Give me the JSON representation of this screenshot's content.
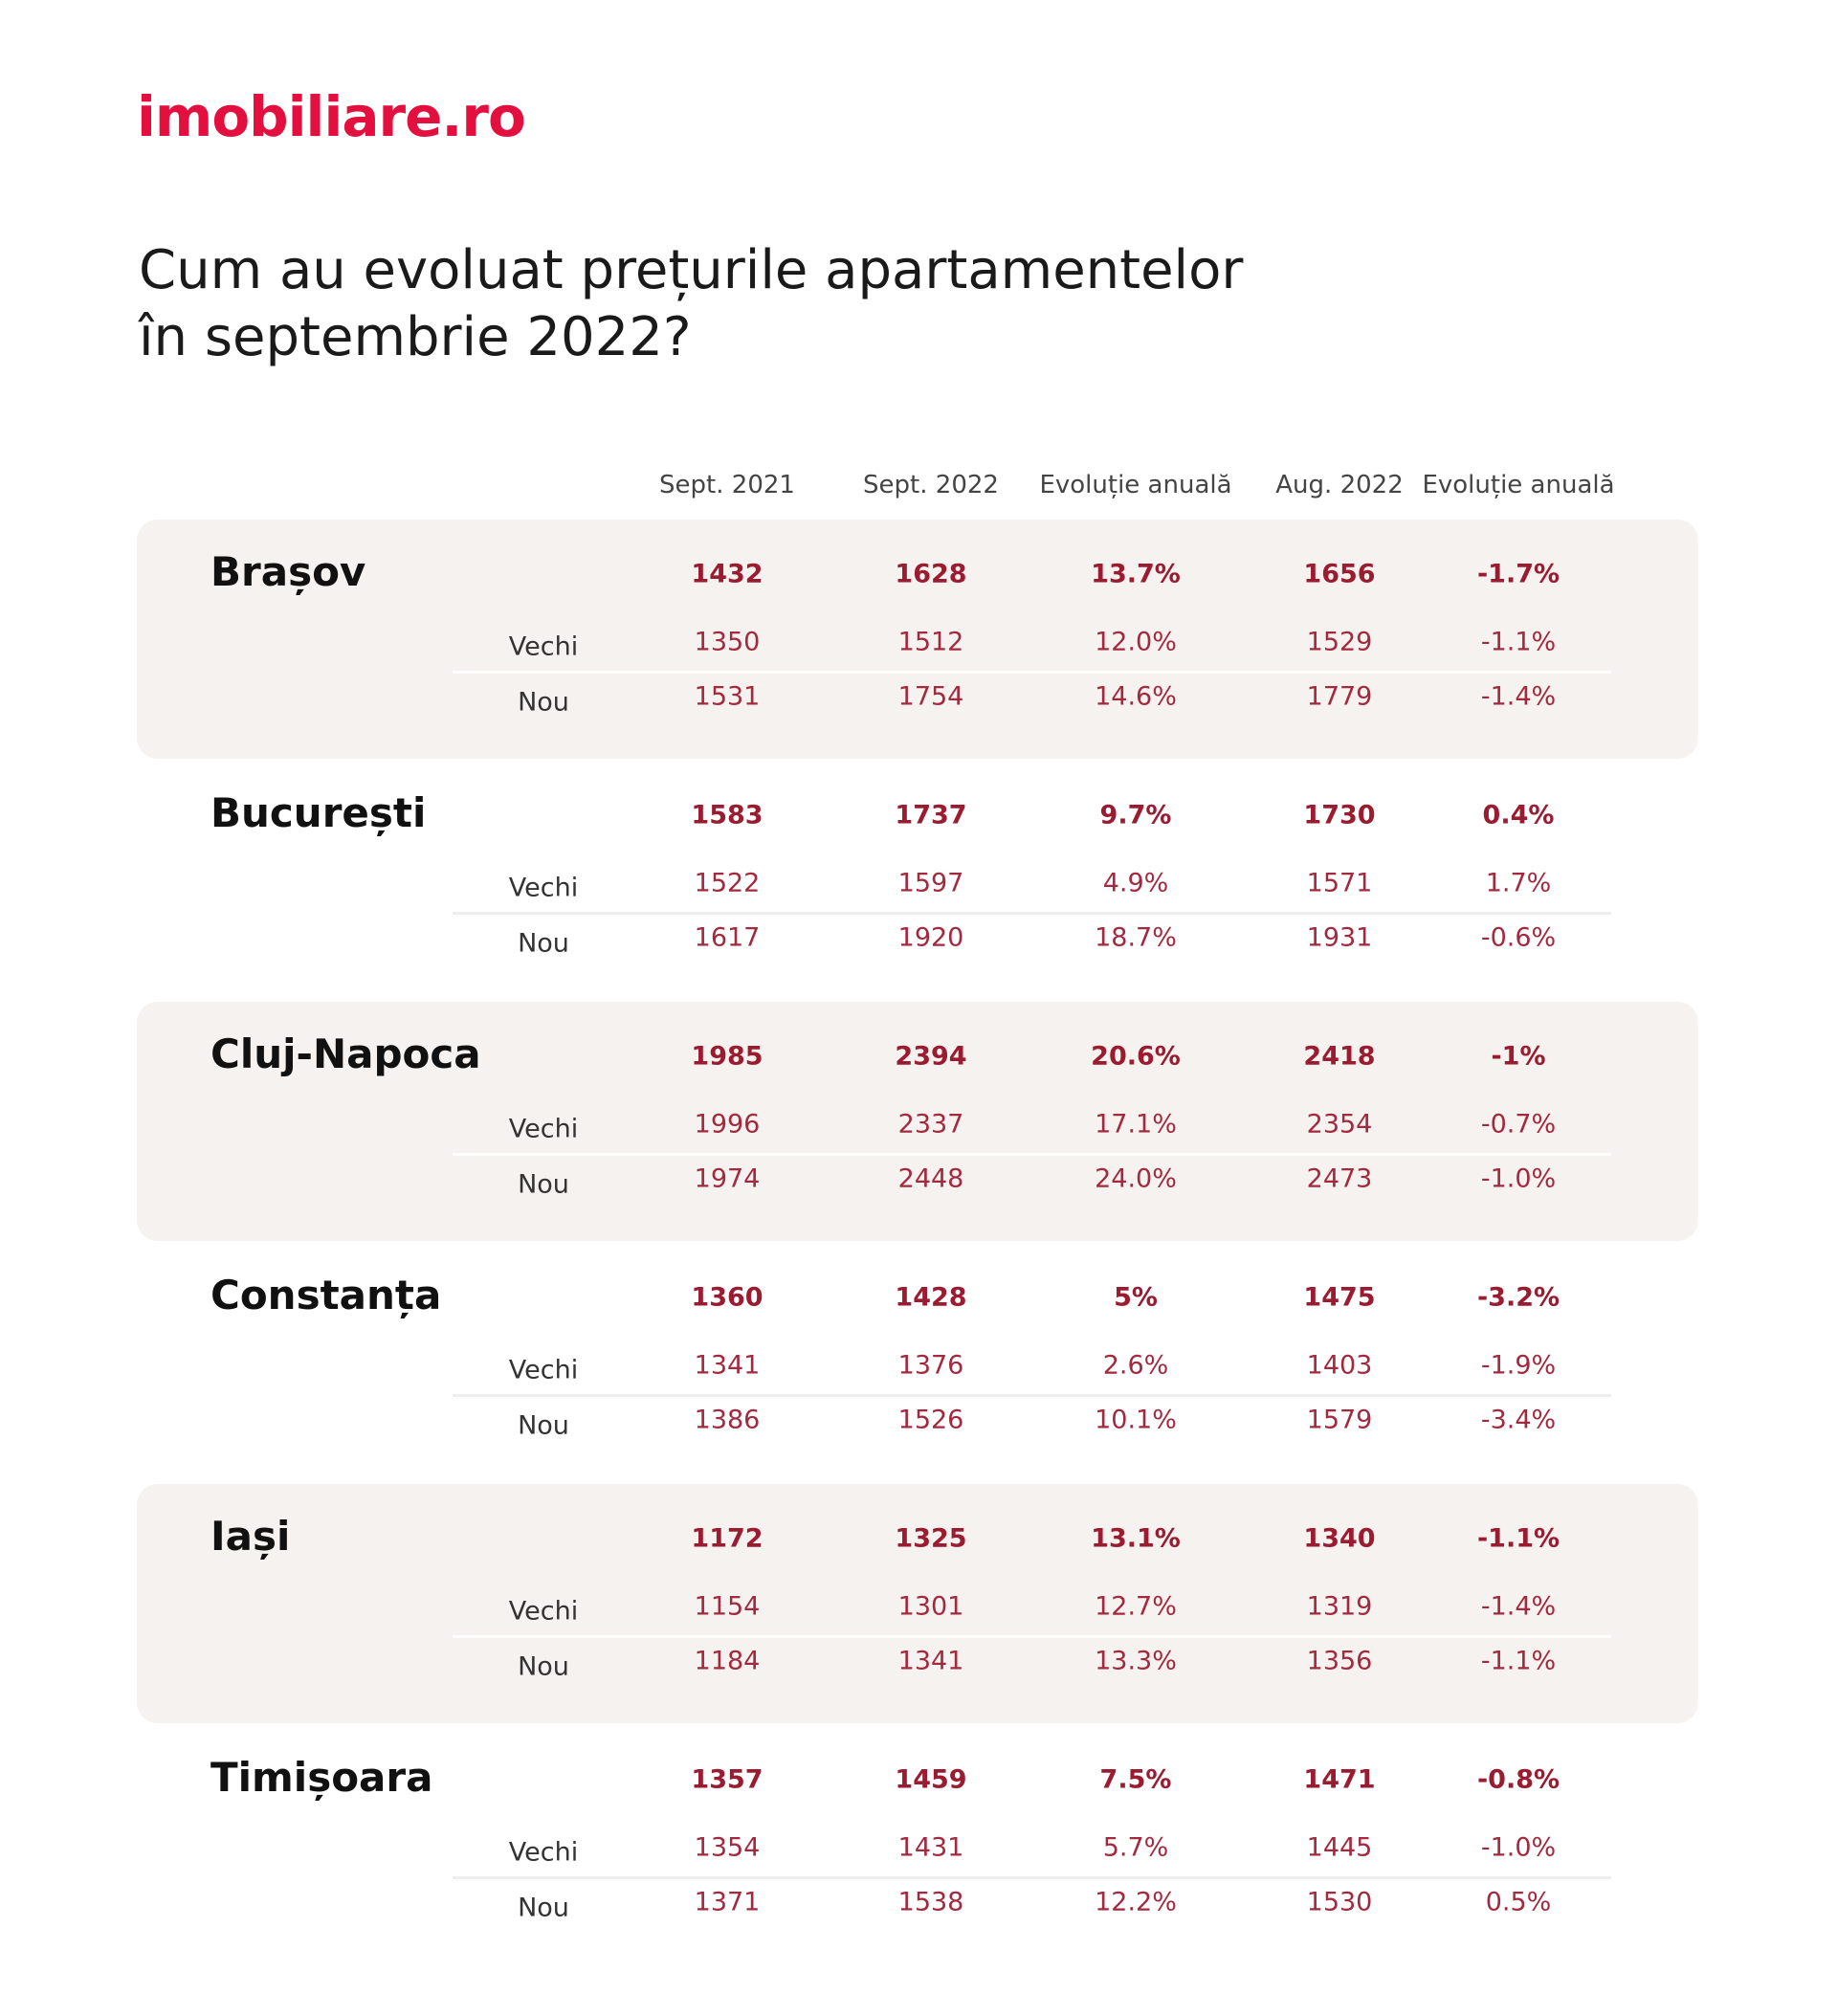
{
  "logo": "imobiliare.ro",
  "title_line1": "Cum au evoluat prețurile apartamentelor",
  "title_line2": "în septembrie 2022?",
  "headers": [
    "Sept. 2021",
    "Sept. 2022",
    "Evoluție anuală",
    "Aug. 2022",
    "Evoluție anuală"
  ],
  "row_labels": {
    "old": "Vechi",
    "new": "Nou"
  },
  "colors": {
    "brand": "#e3103f",
    "values": "#9b1b30",
    "block_bg": "#f6f2ef"
  },
  "cities": [
    {
      "name": "Brașov",
      "total": [
        "1432",
        "1628",
        "13.7%",
        "1656",
        "-1.7%"
      ],
      "old": [
        "1350",
        "1512",
        "12.0%",
        "1529",
        "-1.1%"
      ],
      "new": [
        "1531",
        "1754",
        "14.6%",
        "1779",
        "-1.4%"
      ]
    },
    {
      "name": "București",
      "total": [
        "1583",
        "1737",
        "9.7%",
        "1730",
        "0.4%"
      ],
      "old": [
        "1522",
        "1597",
        "4.9%",
        "1571",
        "1.7%"
      ],
      "new": [
        "1617",
        "1920",
        "18.7%",
        "1931",
        "-0.6%"
      ]
    },
    {
      "name": "Cluj-Napoca",
      "total": [
        "1985",
        "2394",
        "20.6%",
        "2418",
        "-1%"
      ],
      "old": [
        "1996",
        "2337",
        "17.1%",
        "2354",
        "-0.7%"
      ],
      "new": [
        "1974",
        "2448",
        "24.0%",
        "2473",
        "-1.0%"
      ]
    },
    {
      "name": "Constanța",
      "total": [
        "1360",
        "1428",
        "5%",
        "1475",
        "-3.2%"
      ],
      "old": [
        "1341",
        "1376",
        "2.6%",
        "1403",
        "-1.9%"
      ],
      "new": [
        "1386",
        "1526",
        "10.1%",
        "1579",
        "-3.4%"
      ]
    },
    {
      "name": "Iași",
      "total": [
        "1172",
        "1325",
        "13.1%",
        "1340",
        "-1.1%"
      ],
      "old": [
        "1154",
        "1301",
        "12.7%",
        "1319",
        "-1.4%"
      ],
      "new": [
        "1184",
        "1341",
        "13.3%",
        "1356",
        "-1.1%"
      ]
    },
    {
      "name": "Timișoara",
      "total": [
        "1357",
        "1459",
        "7.5%",
        "1471",
        "-0.8%"
      ],
      "old": [
        "1354",
        "1431",
        "5.7%",
        "1445",
        "-1.0%"
      ],
      "new": [
        "1371",
        "1538",
        "12.2%",
        "1530",
        "0.5%"
      ]
    }
  ]
}
